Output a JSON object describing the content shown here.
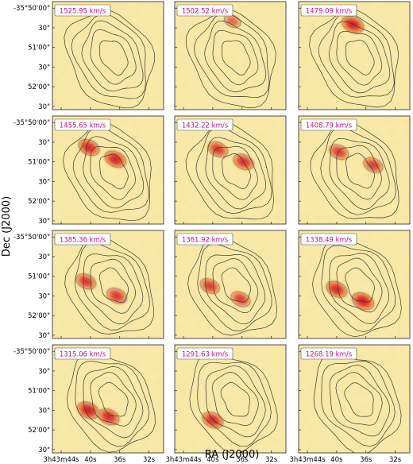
{
  "chart_data": {
    "type": "channel-map",
    "xlabel": "RA (J2000)",
    "ylabel": "Dec (J2000)",
    "layout": {
      "rows": 4,
      "cols": 3
    },
    "x_ticks": [
      "3h43m44s",
      "40s",
      "36s",
      "32s"
    ],
    "y_ticks": [
      "-35°50'00\"",
      "30\"",
      "51'00\"",
      "30\"",
      "52'00\"",
      "30\""
    ],
    "velocity_unit": "km/s",
    "panels": [
      {
        "velocity": "1525.95 km/s",
        "emission": []
      },
      {
        "velocity": "1502.52 km/s",
        "emission": [
          {
            "ra_s": 37.3,
            "dec_arcsec": 3020,
            "strength": 0.45
          }
        ]
      },
      {
        "velocity": "1479.09 km/s",
        "emission": [
          {
            "ra_s": 37.8,
            "dec_arcsec": 3025,
            "strength": 1.0
          }
        ]
      },
      {
        "velocity": "1455.65 km/s",
        "emission": [
          {
            "ra_s": 40.2,
            "dec_arcsec": 3038,
            "strength": 0.9
          },
          {
            "ra_s": 36.6,
            "dec_arcsec": 3056,
            "strength": 0.95
          }
        ]
      },
      {
        "velocity": "1432.22 km/s",
        "emission": [
          {
            "ra_s": 39.3,
            "dec_arcsec": 3041,
            "strength": 0.8
          },
          {
            "ra_s": 35.8,
            "dec_arcsec": 3060,
            "strength": 0.85
          }
        ]
      },
      {
        "velocity": "1408.79 km/s",
        "emission": [
          {
            "ra_s": 39.7,
            "dec_arcsec": 3045,
            "strength": 0.75
          },
          {
            "ra_s": 35.0,
            "dec_arcsec": 3065,
            "strength": 0.75
          }
        ]
      },
      {
        "velocity": "1385.36 km/s",
        "emission": [
          {
            "ra_s": 40.6,
            "dec_arcsec": 3068,
            "strength": 0.8
          },
          {
            "ra_s": 36.4,
            "dec_arcsec": 3090,
            "strength": 0.8
          }
        ]
      },
      {
        "velocity": "1361.92 km/s",
        "emission": [
          {
            "ra_s": 40.4,
            "dec_arcsec": 3075,
            "strength": 0.75
          },
          {
            "ra_s": 36.2,
            "dec_arcsec": 3095,
            "strength": 0.75
          }
        ]
      },
      {
        "velocity": "1338.49 km/s",
        "emission": [
          {
            "ra_s": 40.0,
            "dec_arcsec": 3080,
            "strength": 0.9
          },
          {
            "ra_s": 36.4,
            "dec_arcsec": 3098,
            "strength": 1.0
          }
        ]
      },
      {
        "velocity": "1315.06 km/s",
        "emission": [
          {
            "ra_s": 40.3,
            "dec_arcsec": 3090,
            "strength": 1.0
          },
          {
            "ra_s": 37.5,
            "dec_arcsec": 3100,
            "strength": 0.9
          }
        ]
      },
      {
        "velocity": "1291.63 km/s",
        "emission": [
          {
            "ra_s": 40.0,
            "dec_arcsec": 3105,
            "strength": 0.9
          }
        ]
      },
      {
        "velocity": "1268.19 km/s",
        "emission": []
      }
    ]
  },
  "colors": {
    "background": "#f7e7a6",
    "emission_mid": "#f0a04a",
    "emission_peak": "#e0342a",
    "contour": "#3a3a2a",
    "label_text": "#c0118a"
  }
}
